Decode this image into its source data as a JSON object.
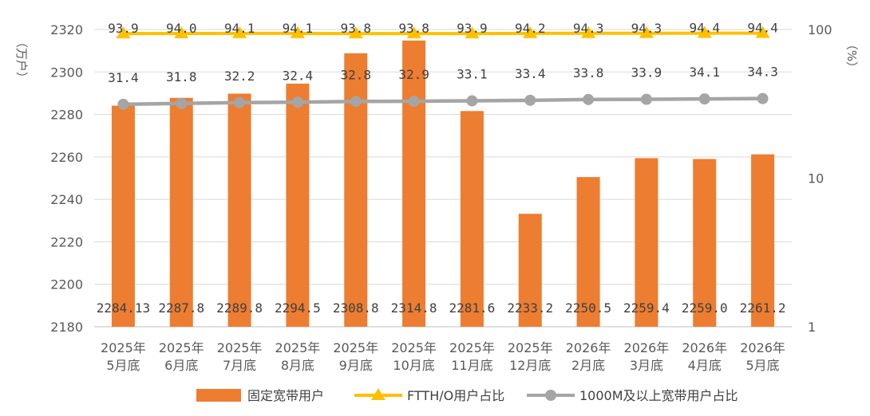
{
  "chart_data": {
    "type": "bar",
    "categories": [
      [
        "2025年",
        "5月底"
      ],
      [
        "2025年",
        "6月底"
      ],
      [
        "2025年",
        "7月底"
      ],
      [
        "2025年",
        "8月底"
      ],
      [
        "2025年",
        "9月底"
      ],
      [
        "2025年",
        "10月底"
      ],
      [
        "2025年",
        "11月底"
      ],
      [
        "2025年",
        "12月底"
      ],
      [
        "2026年",
        "2月底"
      ],
      [
        "2026年",
        "3月底"
      ],
      [
        "2026年",
        "4月底"
      ],
      [
        "2026年",
        "5月底"
      ]
    ],
    "y_left": {
      "label": "（万户）",
      "min": 2180,
      "max": 2320,
      "ticks": [
        2180,
        2200,
        2220,
        2240,
        2260,
        2280,
        2300,
        2320
      ]
    },
    "y_right": {
      "label": "（%）",
      "scale": "log",
      "min": 1,
      "max": 100,
      "ticks": [
        1,
        10,
        100
      ]
    },
    "grid": true,
    "legend_position": "bottom",
    "series": [
      {
        "name": "固定宽带用户",
        "type": "bar",
        "axis": "left",
        "color": "#ED7D31",
        "values": [
          2284.13,
          2287.8,
          2289.8,
          2294.5,
          2308.8,
          2314.8,
          2281.6,
          2233.2,
          2250.5,
          2259.4,
          2259.0,
          2261.2
        ],
        "labels": [
          "2284.13",
          "2287.8",
          "2289.8",
          "2294.5",
          "2308.8",
          "2314.8",
          "2281.6",
          "2233.2",
          "2250.5",
          "2259.4",
          "2259.0",
          "2261.2"
        ]
      },
      {
        "name": "FTTH/O用户占比",
        "type": "line",
        "axis": "right",
        "color": "#FFC000",
        "marker": "triangle",
        "values": [
          93.9,
          94.0,
          94.1,
          94.1,
          93.8,
          93.8,
          93.9,
          94.2,
          94.3,
          94.3,
          94.4,
          94.4
        ],
        "labels": [
          "93.9",
          "94.0",
          "94.1",
          "94.1",
          "93.8",
          "93.8",
          "93.9",
          "94.2",
          "94.3",
          "94.3",
          "94.4",
          "94.4"
        ]
      },
      {
        "name": "1000M及以上宽带用户占比",
        "type": "line",
        "axis": "right",
        "color": "#A5A5A5",
        "marker": "circle",
        "values": [
          31.4,
          31.8,
          32.2,
          32.4,
          32.8,
          32.9,
          33.1,
          33.4,
          33.8,
          33.9,
          34.1,
          34.3
        ],
        "labels": [
          "31.4",
          "31.8",
          "32.2",
          "32.4",
          "32.8",
          "32.9",
          "33.1",
          "33.4",
          "33.8",
          "33.9",
          "34.1",
          "34.3"
        ]
      }
    ]
  }
}
